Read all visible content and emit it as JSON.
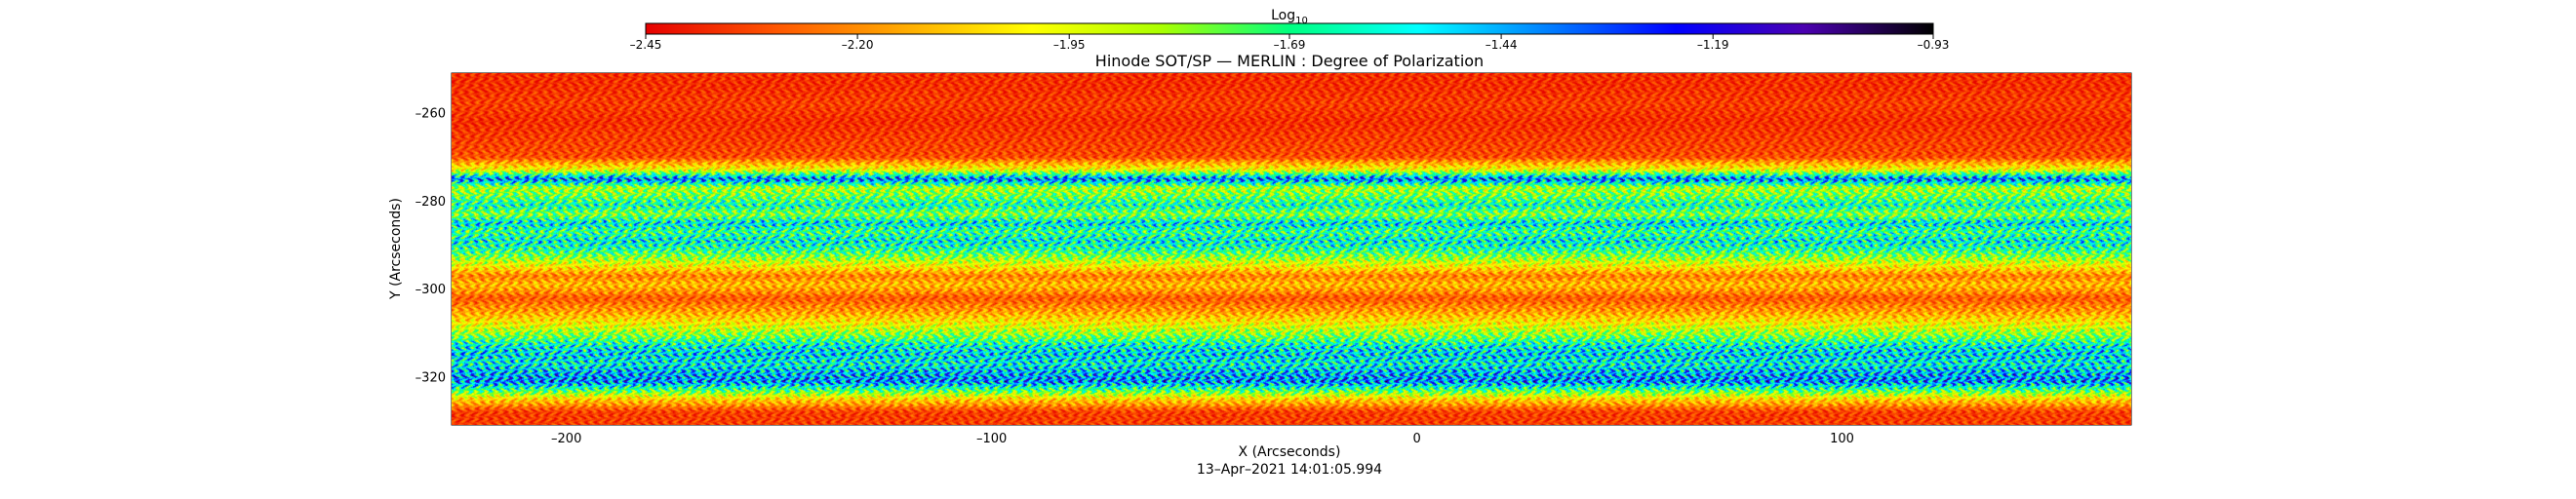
{
  "chart_data": {
    "type": "heatmap",
    "title": "Hinode SOT/SP — MERLIN : Degree of Polarization",
    "xlabel": "X (Arcseconds)",
    "ylabel": "Y (Arcseconds)",
    "timestamp": "13–Apr–2021 14:01:05.994",
    "xlim": [
      -227,
      168
    ],
    "ylim": [
      -331,
      -251
    ],
    "x_ticks": [
      {
        "value": -200,
        "label": "–200"
      },
      {
        "value": -100,
        "label": "–100"
      },
      {
        "value": 0,
        "label": "0"
      },
      {
        "value": 100,
        "label": "100"
      }
    ],
    "y_ticks": [
      {
        "value": -260,
        "label": "–260"
      },
      {
        "value": -280,
        "label": "–280"
      },
      {
        "value": -300,
        "label": "–300"
      },
      {
        "value": -320,
        "label": "–320"
      }
    ],
    "colorbar": {
      "title": "Log",
      "title_subscript": "10",
      "range": [
        -2.45,
        -0.93
      ],
      "ticks": [
        {
          "value": -2.45,
          "label": "–2.45"
        },
        {
          "value": -2.2,
          "label": "–2.20"
        },
        {
          "value": -1.95,
          "label": "–1.95"
        },
        {
          "value": -1.69,
          "label": "–1.69"
        },
        {
          "value": -1.44,
          "label": "–1.44"
        },
        {
          "value": -1.19,
          "label": "–1.19"
        },
        {
          "value": -0.93,
          "label": "–0.93"
        }
      ],
      "colors": [
        "#e60000",
        "#ff5500",
        "#ffaa00",
        "#ffff00",
        "#aaff00",
        "#00ff80",
        "#00ffff",
        "#0080ff",
        "#0000ff",
        "#4b00b0",
        "#000000"
      ]
    },
    "y_profile": [
      {
        "y": -254,
        "level": 0.06
      },
      {
        "y": -258,
        "level": 0.08
      },
      {
        "y": -262,
        "level": 0.06
      },
      {
        "y": -266,
        "level": 0.08
      },
      {
        "y": -270,
        "level": 0.1
      },
      {
        "y": -273,
        "level": 0.32
      },
      {
        "y": -275,
        "level": 0.72
      },
      {
        "y": -277,
        "level": 0.38
      },
      {
        "y": -279,
        "level": 0.45
      },
      {
        "y": -281,
        "level": 0.55
      },
      {
        "y": -283,
        "level": 0.42
      },
      {
        "y": -285,
        "level": 0.6
      },
      {
        "y": -287,
        "level": 0.5
      },
      {
        "y": -289,
        "level": 0.58
      },
      {
        "y": -291,
        "level": 0.52
      },
      {
        "y": -293,
        "level": 0.4
      },
      {
        "y": -295,
        "level": 0.28
      },
      {
        "y": -297,
        "level": 0.15
      },
      {
        "y": -299,
        "level": 0.22
      },
      {
        "y": -302,
        "level": 0.12
      },
      {
        "y": -305,
        "level": 0.18
      },
      {
        "y": -308,
        "level": 0.3
      },
      {
        "y": -311,
        "level": 0.45
      },
      {
        "y": -313,
        "level": 0.58
      },
      {
        "y": -315,
        "level": 0.62
      },
      {
        "y": -317,
        "level": 0.58
      },
      {
        "y": -319,
        "level": 0.65
      },
      {
        "y": -321,
        "level": 0.7
      },
      {
        "y": -323,
        "level": 0.48
      },
      {
        "y": -325,
        "level": 0.25
      },
      {
        "y": -328,
        "level": 0.08
      }
    ]
  }
}
